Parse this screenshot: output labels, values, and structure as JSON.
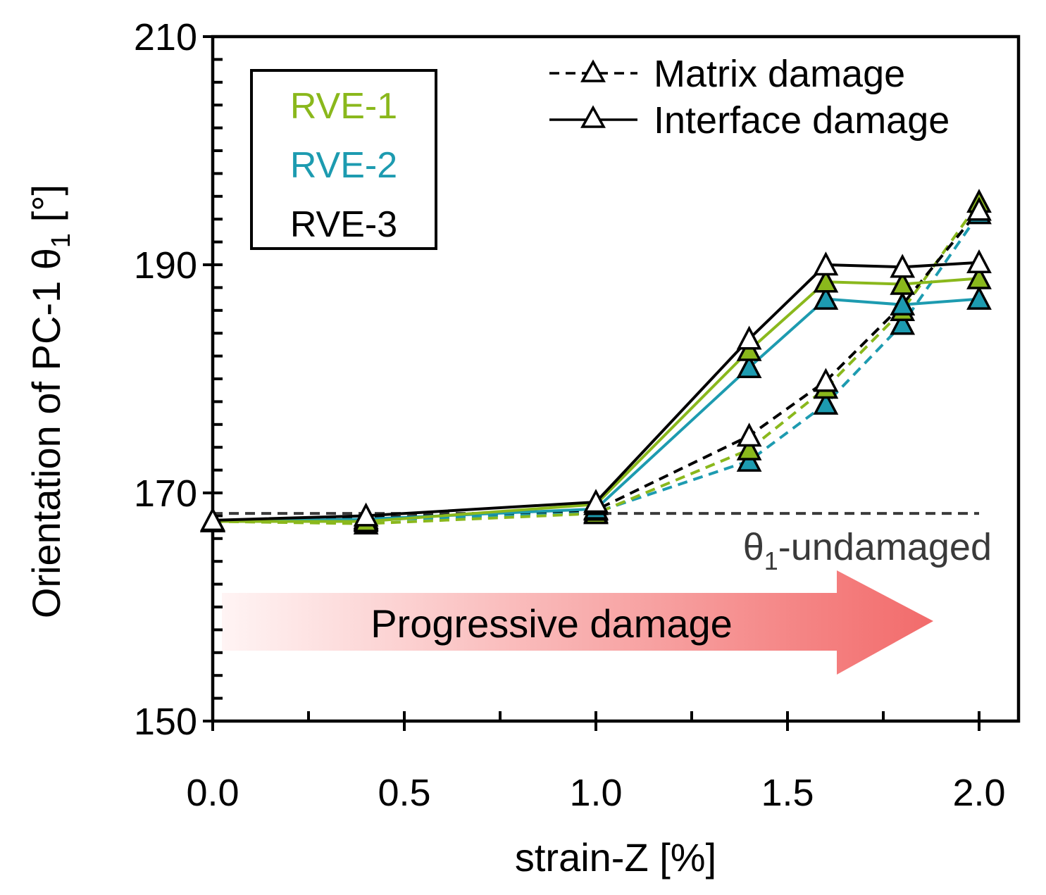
{
  "chart_data": {
    "type": "line",
    "title": "",
    "xlabel": "strain-Z [%]",
    "ylabel": {
      "main": "Orientation of PC-1  θ",
      "subscript": "1",
      "unit": "  [°]"
    },
    "xlim": [
      0.0,
      2.1
    ],
    "ylim": [
      150,
      210
    ],
    "x_ticks": [
      0.0,
      0.5,
      1.0,
      1.5,
      2.0
    ],
    "x_tick_labels": [
      "0.0",
      "0.5",
      "1.0",
      "1.5",
      "2.0"
    ],
    "y_ticks": [
      150,
      170,
      190,
      210
    ],
    "y_tick_labels": [
      "150",
      "170",
      "190",
      "210"
    ],
    "x": [
      0.0,
      0.4,
      1.0,
      1.4,
      1.6,
      1.8,
      2.0
    ],
    "series": [
      {
        "name": "RVE-1",
        "damage": "Matrix damage",
        "color": "#8ab81c",
        "style": "dashed",
        "marker_fill": "#8ab81c",
        "values": [
          167.5,
          167.3,
          168.2,
          173.8,
          179.2,
          186.0,
          195.5
        ]
      },
      {
        "name": "RVE-2",
        "damage": "Matrix damage",
        "color": "#1d9bb0",
        "style": "dashed",
        "marker_fill": "#1d9bb0",
        "values": [
          167.5,
          167.6,
          168.3,
          172.8,
          177.8,
          184.8,
          194.5
        ]
      },
      {
        "name": "RVE-3",
        "damage": "Matrix damage",
        "color": "#000000",
        "style": "dashed",
        "marker_fill": "#ffffff",
        "values": [
          167.6,
          167.8,
          168.5,
          175.0,
          179.8,
          186.5,
          194.8
        ]
      },
      {
        "name": "RVE-1",
        "damage": "Interface damage",
        "color": "#8ab81c",
        "style": "solid",
        "marker_fill": "#8ab81c",
        "values": [
          167.5,
          167.5,
          169.0,
          182.5,
          188.5,
          188.3,
          188.8
        ]
      },
      {
        "name": "RVE-2",
        "damage": "Interface damage",
        "color": "#1d9bb0",
        "style": "solid",
        "marker_fill": "#1d9bb0",
        "values": [
          167.5,
          167.7,
          168.6,
          181.0,
          187.0,
          186.5,
          187.0
        ]
      },
      {
        "name": "RVE-3",
        "damage": "Interface damage",
        "color": "#000000",
        "style": "solid",
        "marker_fill": "#ffffff",
        "values": [
          167.6,
          168.0,
          169.2,
          183.5,
          190.0,
          189.8,
          190.2
        ]
      }
    ],
    "reference_line": {
      "label": "θ",
      "subscript": "1",
      "suffix": "-undamaged",
      "y": 168.2,
      "color": "#3a3a3a"
    },
    "legend_rve": [
      {
        "label": "RVE-1",
        "color": "#8ab81c"
      },
      {
        "label": "RVE-2",
        "color": "#1d9bb0"
      },
      {
        "label": "RVE-3",
        "color": "#000000"
      }
    ],
    "legend_damage": [
      {
        "label": "Matrix damage",
        "style": "dashed"
      },
      {
        "label": "Interface damage",
        "style": "solid"
      }
    ],
    "legend_placement": {
      "rve": "top-left",
      "damage": "top-right"
    },
    "annotation_arrow": {
      "label": "Progressive damage",
      "color_start": "#fff4f4",
      "color_end": "#f26b6b"
    }
  }
}
